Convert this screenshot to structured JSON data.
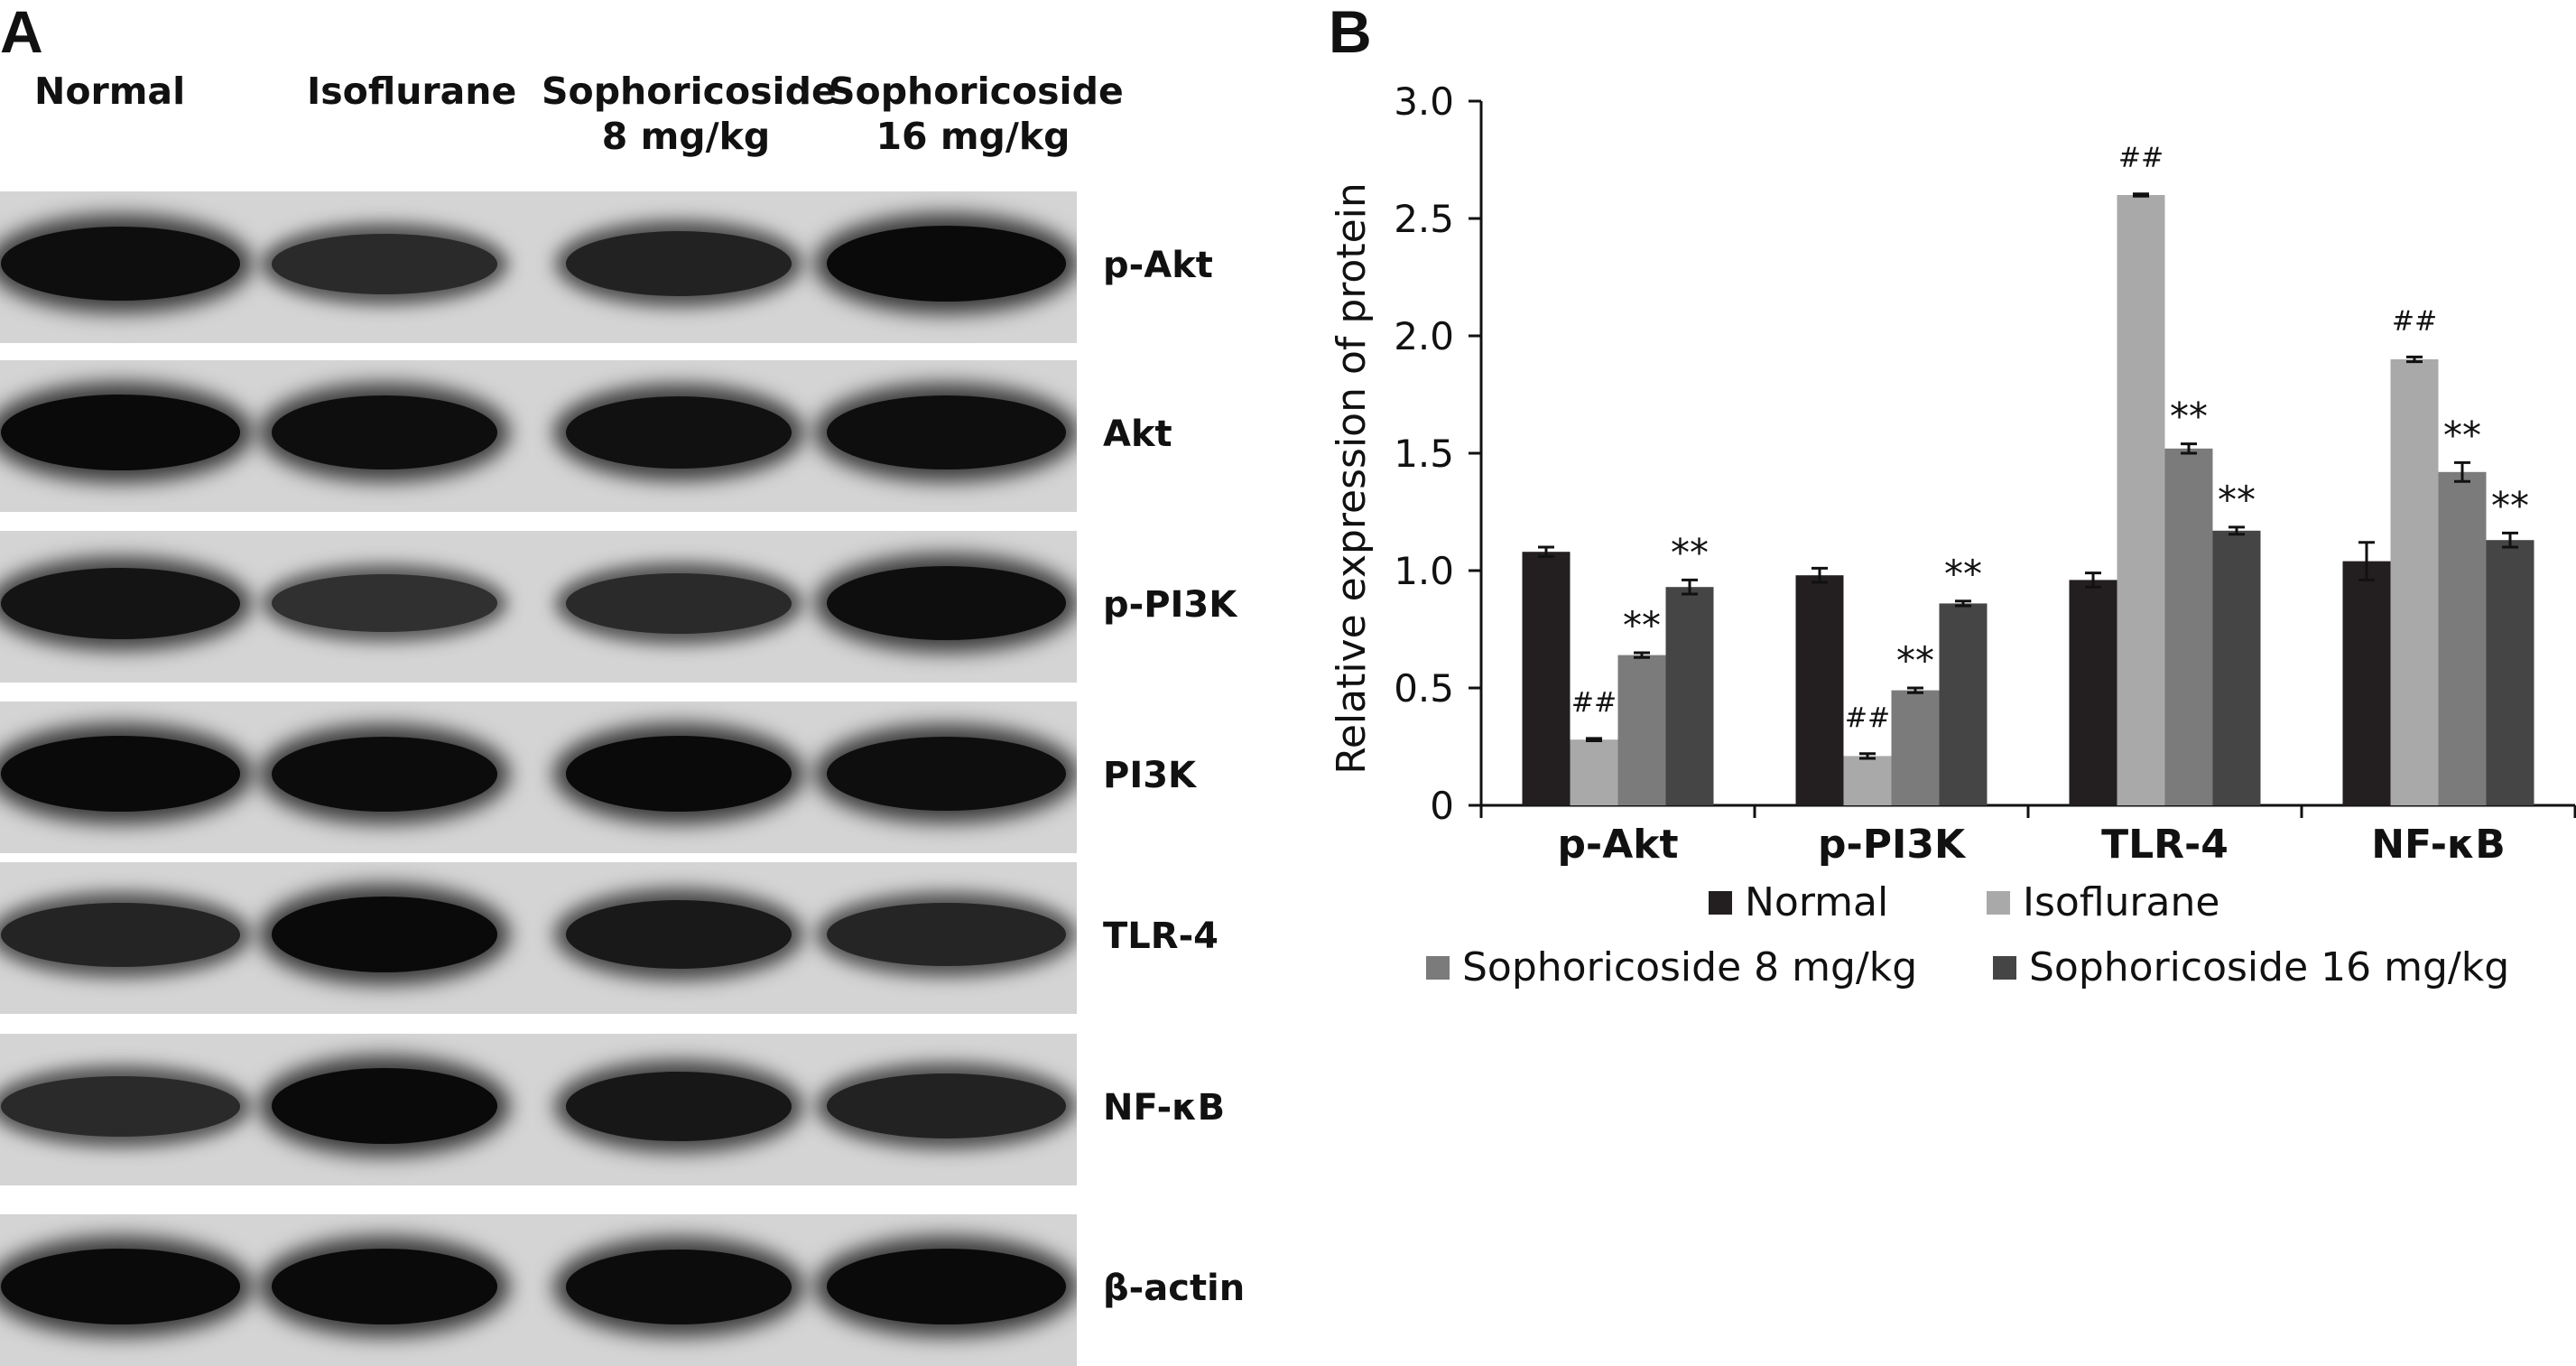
{
  "panel_a": {
    "letter": "A",
    "lanes": [
      {
        "line1": "Normal",
        "line2": ""
      },
      {
        "line1": "Isoflurane",
        "line2": ""
      },
      {
        "line1": "Sophoricoside",
        "line2": "8 mg/kg"
      },
      {
        "line1": "Sophoricoside",
        "line2": "16 mg/kg"
      }
    ],
    "blots": [
      {
        "label": "p-Akt",
        "intensity": [
          0.95,
          0.62,
          0.72,
          1.0
        ]
      },
      {
        "label": "Akt",
        "intensity": [
          1.0,
          0.95,
          0.92,
          0.95
        ]
      },
      {
        "label": "p-PI3K",
        "intensity": [
          0.88,
          0.55,
          0.62,
          0.95
        ]
      },
      {
        "label": "PI3K",
        "intensity": [
          1.0,
          0.98,
          1.0,
          0.95
        ]
      },
      {
        "label": "TLR-4",
        "intensity": [
          0.7,
          1.0,
          0.82,
          0.68
        ]
      },
      {
        "label": "NF-κB",
        "intensity": [
          0.62,
          1.0,
          0.85,
          0.72
        ]
      },
      {
        "label": "β-actin",
        "intensity": [
          1.0,
          1.0,
          0.98,
          1.0
        ]
      }
    ]
  },
  "panel_b": {
    "letter": "B",
    "legend": [
      {
        "label": "Normal",
        "color": "#231f20"
      },
      {
        "label": "Isoflurane",
        "color": "#a9a9a9"
      },
      {
        "label": "Sophoricoside 8 mg/kg",
        "color": "#7b7b7b"
      },
      {
        "label": "Sophoricoside 16 mg/kg",
        "color": "#454545"
      }
    ]
  },
  "chart_data": {
    "type": "bar",
    "categories": [
      "p-Akt",
      "p-PI3K",
      "TLR-4",
      "NF-κB"
    ],
    "series": [
      {
        "name": "Normal",
        "color": "#231f20",
        "values": [
          1.08,
          0.98,
          0.96,
          1.04
        ],
        "errors": [
          0.02,
          0.03,
          0.03,
          0.08
        ],
        "annotations": [
          "",
          "",
          "",
          ""
        ]
      },
      {
        "name": "Isoflurane",
        "color": "#a9a9a9",
        "values": [
          0.28,
          0.21,
          2.6,
          1.9
        ],
        "errors": [
          0.005,
          0.01,
          0.005,
          0.01
        ],
        "annotations": [
          "##",
          "##",
          "##",
          "##"
        ]
      },
      {
        "name": "Sophoricoside 8 mg/kg",
        "color": "#7b7b7b",
        "values": [
          0.64,
          0.49,
          1.52,
          1.42
        ],
        "errors": [
          0.01,
          0.01,
          0.02,
          0.04
        ],
        "annotations": [
          "**",
          "**",
          "**",
          "**"
        ]
      },
      {
        "name": "Sophoricoside 16 mg/kg",
        "color": "#454545",
        "values": [
          0.93,
          0.86,
          1.17,
          1.13
        ],
        "errors": [
          0.03,
          0.01,
          0.015,
          0.03
        ],
        "annotations": [
          "**",
          "**",
          "**",
          "**"
        ]
      }
    ],
    "ylabel": "Relative expression of protein",
    "xlabel": "",
    "ylim": [
      0,
      3.0
    ],
    "yticks": [
      "0",
      "0.5",
      "1.0",
      "1.5",
      "2.0",
      "2.5",
      "3.0"
    ],
    "grid": false,
    "legend_position": "bottom"
  }
}
